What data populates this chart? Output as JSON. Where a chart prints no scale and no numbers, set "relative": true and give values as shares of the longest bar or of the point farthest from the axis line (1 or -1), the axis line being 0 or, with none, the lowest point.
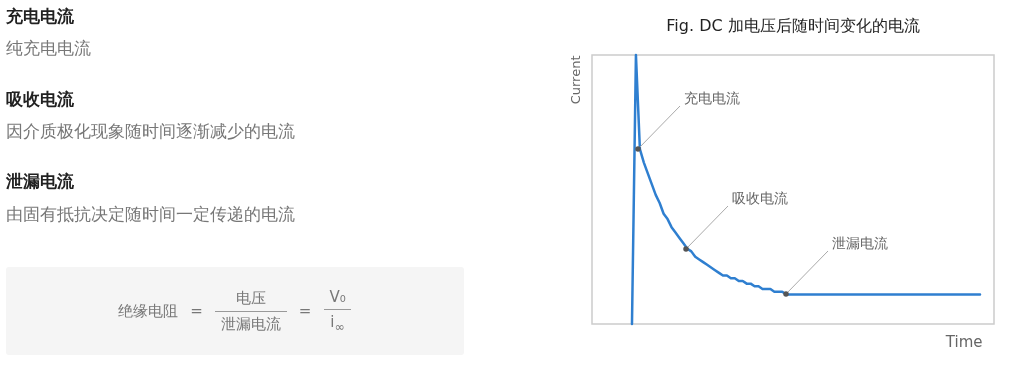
{
  "chart_data": [
    {
      "type": "other",
      "annotations": [
        "充电电流",
        "纯充电电流",
        "吸收电流",
        "因介质极化现象随时间逐渐减少的电流",
        "泄漏电流",
        "由固有抵抗决定随时间一定传递的电流",
        "绝缘电阻",
        "=",
        "电压",
        "泄漏电流",
        "=",
        "V₀",
        "i$_{∞}$"
      ]
    },
    {
      "type": "line",
      "title": "Fig. DC 加电压后随时间变化的电流",
      "xlabel": "Time",
      "ylabel": "Current",
      "relative": true,
      "categories": [
        null,
        null,
        null,
        null,
        null,
        null,
        null,
        null,
        null,
        null,
        null,
        null,
        null,
        null,
        null,
        null,
        null,
        null,
        null,
        null,
        null,
        null,
        null,
        null,
        null,
        null,
        null,
        null,
        null,
        null,
        null,
        null,
        null,
        null,
        null,
        null,
        null,
        null,
        null,
        null,
        null,
        null,
        null,
        null,
        null,
        null,
        null,
        null,
        null,
        null,
        null,
        null,
        null,
        null,
        null,
        null,
        null,
        null,
        null,
        null,
        null,
        null,
        null,
        null,
        null,
        null,
        null,
        null,
        null,
        null,
        null,
        null,
        null,
        null,
        null,
        null,
        null,
        null,
        null,
        null,
        null,
        null,
        null,
        null,
        null,
        null,
        null,
        null,
        null
      ],
      "series": [
        {
          "color": "#2f7fd0",
          "values": [
            0,
            1,
            0.65,
            0.6,
            0.56,
            0.52,
            0.48,
            0.45,
            0.41,
            0.39,
            0.36,
            0.34,
            0.32,
            0.3,
            0.28,
            0.27,
            0.25,
            0.24,
            0.23,
            0.22,
            0.21,
            0.2,
            0.19,
            0.18,
            0.18,
            0.17,
            0.17,
            0.16,
            0.16,
            0.15,
            0.15,
            0.14,
            0.14,
            0.13,
            0.13,
            0.13,
            0.12,
            0.12,
            0.12,
            0.11,
            0.11,
            0.11,
            0.11,
            0.11,
            0.11,
            0.11,
            0.11,
            0.11,
            0.11,
            0.11,
            0.11,
            0.11,
            0.11,
            0.11,
            0.11,
            0.11,
            0.11,
            0.11,
            0.11,
            0.11,
            0.11,
            0.11,
            0.11,
            0.11,
            0.11,
            0.11,
            0.11,
            0.11,
            0.11,
            0.11,
            0.11,
            0.11,
            0.11,
            0.11,
            0.11,
            0.11,
            0.11,
            0.11,
            0.11,
            0.11,
            0.11,
            0.11,
            0.11,
            0.11,
            0.11,
            0.11,
            0.11,
            0.11,
            0.11
          ]
        }
      ],
      "annotations": [
        "充电电流",
        "吸收电流",
        "泄漏电流"
      ]
    }
  ]
}
